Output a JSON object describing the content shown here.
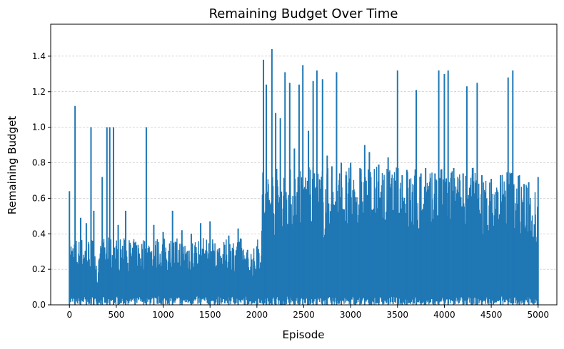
{
  "chart_data": {
    "type": "line",
    "title": "Remaining Budget Over Time",
    "xlabel": "Episode",
    "ylabel": "Remaining Budget",
    "xlim": [
      -200,
      5200
    ],
    "ylim": [
      0,
      1.58
    ],
    "x_ticks": [
      0,
      500,
      1000,
      1500,
      2000,
      2500,
      3000,
      3500,
      4000,
      4500,
      5000
    ],
    "x_tick_labels": [
      "0",
      "500",
      "1000",
      "1500",
      "2000",
      "2500",
      "3000",
      "3500",
      "4000",
      "4500",
      "5000"
    ],
    "y_ticks": [
      0.0,
      0.2,
      0.4,
      0.6,
      0.8,
      1.0,
      1.2,
      1.4
    ],
    "y_tick_labels": [
      "0.0",
      "0.2",
      "0.4",
      "0.6",
      "0.8",
      "1.0",
      "1.2",
      "1.4"
    ],
    "grid": "y-dashed",
    "series": [
      {
        "color": "#1f77b4",
        "x": [
          0,
          60,
          120,
          180,
          230,
          260,
          300,
          350,
          400,
          430,
          470,
          520,
          600,
          700,
          820,
          900,
          1000,
          1100,
          1200,
          1300,
          1400,
          1500,
          1600,
          1700,
          1800,
          1900,
          2000,
          2070,
          2100,
          2160,
          2200,
          2250,
          2300,
          2350,
          2400,
          2450,
          2490,
          2550,
          2600,
          2640,
          2700,
          2750,
          2800,
          2850,
          2900,
          3000,
          3100,
          3150,
          3200,
          3300,
          3400,
          3500,
          3550,
          3600,
          3700,
          3750,
          3800,
          3900,
          3940,
          4000,
          4040,
          4100,
          4200,
          4240,
          4300,
          4350,
          4400,
          4500,
          4600,
          4680,
          4730,
          4800,
          4850,
          4900,
          5000
        ],
        "y": [
          0.64,
          1.12,
          0.49,
          0.46,
          1.0,
          0.53,
          0.1,
          0.72,
          1.0,
          1.0,
          1.0,
          0.45,
          0.53,
          0.35,
          1.0,
          0.45,
          0.41,
          0.53,
          0.42,
          0.4,
          0.46,
          0.47,
          0.32,
          0.39,
          0.43,
          0.31,
          0.33,
          1.38,
          1.24,
          1.44,
          1.08,
          1.05,
          1.31,
          1.25,
          0.88,
          1.24,
          1.35,
          0.98,
          1.26,
          1.32,
          1.27,
          0.84,
          0.78,
          1.31,
          0.8,
          0.8,
          0.77,
          0.9,
          0.86,
          0.79,
          0.83,
          1.32,
          0.73,
          0.76,
          1.21,
          0.74,
          0.77,
          0.74,
          1.32,
          1.3,
          1.32,
          0.77,
          0.74,
          1.23,
          0.77,
          1.25,
          0.73,
          0.71,
          0.73,
          1.28,
          1.32,
          0.73,
          0.68,
          0.69,
          0.72
        ]
      }
    ]
  }
}
